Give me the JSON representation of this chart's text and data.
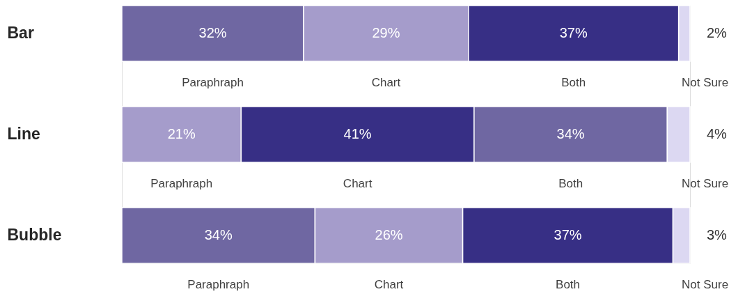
{
  "chart_data": {
    "type": "bar",
    "orientation": "horizontal",
    "stacked": true,
    "categories": [
      "Bar",
      "Line",
      "Bubble"
    ],
    "xlim": [
      0,
      100
    ],
    "tick_labels": "y",
    "series": [
      {
        "name": "Paraphraph",
        "colors": [
          "#6f67a2",
          "#a59ccb",
          "#6f67a2"
        ],
        "values": [
          32,
          21,
          34
        ],
        "value_labels": [
          "32%",
          "21%",
          "34%"
        ]
      },
      {
        "name": "Chart",
        "colors": [
          "#a59ccb",
          "#372f85",
          "#a59ccb"
        ],
        "values": [
          29,
          41,
          26
        ],
        "value_labels": [
          "29%",
          "41%",
          "26%"
        ]
      },
      {
        "name": "Both",
        "colors": [
          "#372f85",
          "#6f67a2",
          "#372f85"
        ],
        "values": [
          37,
          34,
          37
        ],
        "value_labels": [
          "37%",
          "34%",
          "37%"
        ]
      },
      {
        "name": "Not Sure",
        "colors": [
          "#dcd8f2",
          "#dcd8f2",
          "#dcd8f2"
        ],
        "values": [
          2,
          4,
          3
        ],
        "value_labels": [
          "2%",
          "4%",
          "3%"
        ]
      }
    ]
  }
}
